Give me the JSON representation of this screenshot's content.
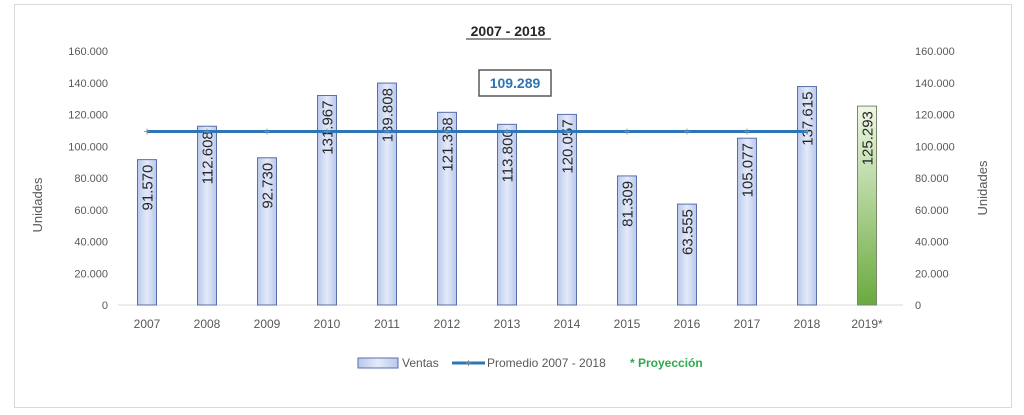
{
  "chart_data": {
    "type": "bar",
    "title": "2007 - 2018",
    "categories": [
      "2007",
      "2008",
      "2009",
      "2010",
      "2011",
      "2012",
      "2013",
      "2014",
      "2015",
      "2016",
      "2017",
      "2018",
      "2019*"
    ],
    "series": [
      {
        "name": "Ventas",
        "type": "bar",
        "values": [
          91570,
          112608,
          92730,
          131967,
          139808,
          121368,
          113800,
          120057,
          81309,
          63555,
          105077,
          137615,
          125293
        ],
        "labels": [
          "91.570",
          "112.608",
          "92.730",
          "131.967",
          "139.808",
          "121.368",
          "113.800",
          "120.057",
          "81.309",
          "63.555",
          "105.077",
          "137.615",
          "125.293"
        ],
        "projected": [
          false,
          false,
          false,
          false,
          false,
          false,
          false,
          false,
          false,
          false,
          false,
          false,
          true
        ]
      },
      {
        "name": "Promedio 2007 - 2018",
        "type": "line",
        "value": 109289,
        "span": [
          "2007",
          "2018"
        ]
      }
    ],
    "average_label": "109.289",
    "projection_note": "* Proyección",
    "ylabel": "Unidades",
    "ylabel_right": "Unidades",
    "ylim": [
      0,
      160000
    ],
    "yticks": [
      0,
      20000,
      40000,
      60000,
      80000,
      100000,
      120000,
      140000,
      160000
    ],
    "ytick_labels": [
      "0",
      "20.000",
      "40.000",
      "60.000",
      "80.000",
      "100.000",
      "120.000",
      "140.000",
      "160.000"
    ],
    "grid": false,
    "legend_position": "bottom",
    "colors": {
      "bar_fill": "#c9d5f0",
      "bar_stroke": "#5b6fa8",
      "projection_fill_top": "#e8f4de",
      "projection_fill_bottom": "#6aaa3e",
      "projection_stroke": "#7a8a6a",
      "average_line": "#2e75b6",
      "average_marker": "#8a8a8a",
      "average_label_text": "#2e75b6",
      "projection_text": "#2fa84f",
      "axis_text": "#595959",
      "bar_label_text": "#262626"
    }
  }
}
